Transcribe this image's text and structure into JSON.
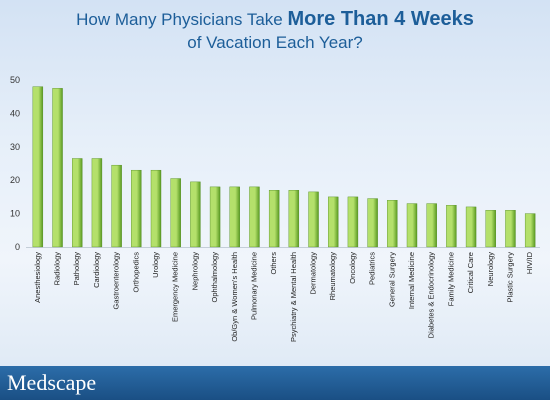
{
  "title": {
    "part1": "How Many Physicians Take ",
    "part2": "More Than 4 Weeks",
    "part3": "of Vacation Each Year?"
  },
  "footer": {
    "brand": "Medscape"
  },
  "colors": {
    "bar_light": "#b4e06b",
    "bar_dark": "#5a9a22",
    "title": "#1d5e99",
    "footer": "#1f5a94"
  },
  "chart_data": {
    "type": "bar",
    "title": "How Many Physicians Take More Than 4 Weeks of Vacation Each Year?",
    "xlabel": "",
    "ylabel": "",
    "ylim": [
      0,
      50
    ],
    "yticks": [
      0,
      10,
      20,
      30,
      40,
      50
    ],
    "grid": false,
    "legend": "none",
    "categories": [
      "Anesthesiology",
      "Radiology",
      "Pathology",
      "Cardiology",
      "Gastroenterology",
      "Orthopedics",
      "Urology",
      "Emergency Medicine",
      "Nephrology",
      "Ophthalmology",
      "Ob/Gyn & Women's Health",
      "Pulmonary Medicine",
      "Others",
      "Psychiatry & Mental Health",
      "Dermatology",
      "Rheumatology",
      "Oncology",
      "Pediatrics",
      "General Surgery",
      "Internal Medicine",
      "Diabetes & Endocrinology",
      "Family Medicine",
      "Critical Care",
      "Neurology",
      "Plastic Surgery",
      "HIV/ID"
    ],
    "values": [
      48,
      47.5,
      26.5,
      26.5,
      24.5,
      23,
      23,
      20.5,
      19.5,
      18,
      18,
      18,
      17,
      17,
      16.5,
      15,
      15,
      14.5,
      14,
      13,
      13,
      12.5,
      12,
      11,
      11,
      10
    ]
  }
}
